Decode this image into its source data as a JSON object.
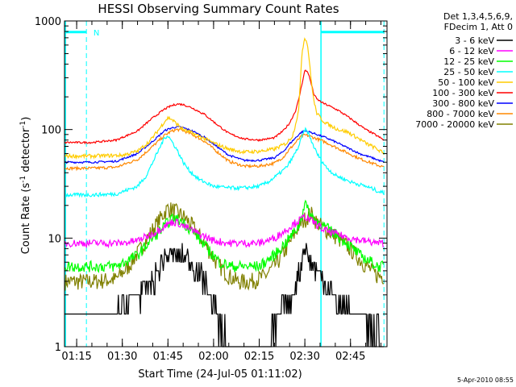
{
  "chart_data": {
    "type": "line",
    "title": "HESSI Observing Summary Count Rates",
    "xlabel": "Start Time (24-Jul-05 01:11:02)",
    "ylabel_main": "Count Rate (s",
    "ylabel_sup1": "-1",
    "ylabel_mid": " detector",
    "ylabel_sup2": "-1",
    "ylabel_end": ")",
    "yscale": "log",
    "ylim": [
      1,
      1000
    ],
    "xlim_minutes": [
      71.0,
      177.0
    ],
    "x_unit": "minutes after 00:00 UT",
    "yticks": [
      {
        "label": "1",
        "value": 1
      },
      {
        "label": "10",
        "value": 10
      },
      {
        "label": "100",
        "value": 100
      },
      {
        "label": "1000",
        "value": 1000
      }
    ],
    "xticks": [
      {
        "label": "01:15",
        "value": 75
      },
      {
        "label": "01:30",
        "value": 90
      },
      {
        "label": "01:45",
        "value": 105
      },
      {
        "label": "02:00",
        "value": 120
      },
      {
        "label": "02:15",
        "value": 135
      },
      {
        "label": "02:30",
        "value": 150
      },
      {
        "label": "02:45",
        "value": 165
      }
    ],
    "legend_header": [
      "Det 1,3,4,5,6,9,",
      "FDecim 1, Att 0"
    ],
    "legend_position": "top-right, outside plot",
    "series": [
      {
        "name": "3 - 6 keV",
        "color": "#000000",
        "x": [
          71,
          80,
          88,
          95,
          100,
          103,
          105,
          108,
          110,
          113,
          117,
          121,
          125,
          130,
          135,
          138,
          142,
          146,
          149,
          150,
          151,
          152,
          154,
          157,
          161,
          165,
          169,
          172,
          174,
          176
        ],
        "y": [
          2,
          2,
          2,
          3,
          4,
          6,
          7,
          7,
          7,
          6,
          4,
          2,
          1.2,
          1,
          1,
          1.2,
          2,
          3,
          6,
          9,
          7,
          6,
          5,
          4,
          2.5,
          2,
          2,
          1.5,
          1.5,
          1
        ]
      },
      {
        "name": "6 - 12 keV",
        "color": "#ff00ff",
        "x": [
          71,
          80,
          90,
          95,
          100,
          104,
          106,
          108,
          110,
          115,
          120,
          125,
          130,
          135,
          140,
          144,
          147,
          149,
          150,
          151,
          153,
          156,
          160,
          165,
          169,
          172,
          174,
          176
        ],
        "y": [
          9,
          9,
          9,
          9.5,
          11,
          13,
          14,
          14,
          13,
          11,
          9.5,
          9,
          9,
          9,
          10,
          12,
          14,
          15,
          16,
          15,
          14,
          12,
          11,
          10,
          9.5,
          9.2,
          9,
          9
        ]
      },
      {
        "name": "12 - 25 keV",
        "color": "#00ff00",
        "x": [
          71,
          80,
          88,
          95,
          100,
          104,
          106,
          108,
          110,
          114,
          118,
          122,
          126,
          130,
          135,
          140,
          145,
          148,
          149,
          150,
          151,
          153,
          156,
          160,
          164,
          168,
          172,
          174,
          176
        ],
        "y": [
          5.5,
          5.5,
          5.5,
          7,
          10,
          13,
          15,
          15,
          14,
          11,
          8,
          6,
          5.5,
          5.5,
          5.5,
          7,
          10,
          13,
          16,
          22,
          18,
          15,
          13,
          11,
          9,
          7,
          6,
          5.5,
          5.5
        ]
      },
      {
        "name": "25 - 50 keV",
        "color": "#00ffff",
        "x": [
          71,
          80,
          88,
          95,
          98,
          100,
          102,
          103,
          104,
          105,
          106,
          108,
          110,
          112,
          115,
          120,
          125,
          130,
          135,
          138,
          141,
          144,
          146,
          148,
          149,
          150,
          151,
          152,
          154,
          157,
          160,
          165,
          170,
          173,
          174,
          176
        ],
        "y": [
          25,
          25,
          25.5,
          30,
          38,
          50,
          65,
          75,
          85,
          88,
          80,
          65,
          50,
          42,
          35,
          30,
          29,
          29,
          30,
          33,
          38,
          45,
          55,
          70,
          85,
          100,
          95,
          80,
          60,
          45,
          38,
          33,
          30,
          28,
          27,
          26
        ]
      },
      {
        "name": "50 - 100 keV",
        "color": "#ffcc00",
        "x": [
          71,
          80,
          90,
          95,
          99,
          102,
          104,
          105,
          106,
          108,
          110,
          112,
          115,
          120,
          125,
          130,
          135,
          140,
          144,
          146,
          148,
          149,
          150,
          151,
          152,
          153,
          154,
          156,
          158,
          161,
          164,
          167,
          170,
          173,
          176
        ],
        "y": [
          57,
          57,
          58,
          63,
          78,
          100,
          120,
          128,
          126,
          112,
          100,
          95,
          88,
          75,
          66,
          62,
          63,
          66,
          75,
          88,
          150,
          500,
          720,
          580,
          300,
          180,
          140,
          120,
          110,
          100,
          95,
          85,
          75,
          68,
          60
        ]
      },
      {
        "name": "100 - 300 keV",
        "color": "#ff0000",
        "x": [
          71,
          80,
          88,
          95,
          100,
          104,
          106,
          108,
          110,
          113,
          117,
          121,
          125,
          130,
          135,
          140,
          143,
          145,
          147,
          148,
          149,
          150,
          151,
          152,
          153,
          154,
          156,
          158,
          161,
          164,
          167,
          170,
          173,
          176
        ],
        "y": [
          76,
          76,
          80,
          97,
          128,
          155,
          165,
          172,
          170,
          158,
          138,
          112,
          92,
          82,
          80,
          84,
          98,
          115,
          150,
          190,
          260,
          350,
          340,
          270,
          210,
          190,
          175,
          165,
          150,
          132,
          115,
          100,
          90,
          80
        ]
      },
      {
        "name": "300 - 800 keV",
        "color": "#0000ff",
        "x": [
          71,
          80,
          88,
          95,
          100,
          104,
          106,
          108,
          110,
          113,
          117,
          121,
          125,
          130,
          135,
          140,
          143,
          145,
          147,
          148,
          149,
          150,
          151,
          152,
          154,
          157,
          160,
          164,
          168,
          172,
          176
        ],
        "y": [
          50,
          50,
          51,
          60,
          78,
          98,
          103,
          106,
          104,
          97,
          85,
          70,
          58,
          52,
          52,
          55,
          63,
          74,
          84,
          90,
          95,
          97,
          96,
          94,
          90,
          84,
          77,
          68,
          60,
          55,
          50
        ]
      },
      {
        "name": "800 - 7000 keV",
        "color": "#ff8800",
        "x": [
          71,
          80,
          88,
          95,
          100,
          104,
          106,
          108,
          110,
          113,
          117,
          121,
          125,
          130,
          135,
          140,
          143,
          145,
          147,
          148,
          149,
          150,
          151,
          152,
          154,
          157,
          160,
          164,
          168,
          172,
          176
        ],
        "y": [
          44,
          44,
          45,
          53,
          70,
          89,
          96,
          100,
          98,
          90,
          78,
          63,
          51,
          46,
          46,
          49,
          56,
          66,
          76,
          82,
          87,
          89,
          88,
          86,
          82,
          76,
          69,
          61,
          54,
          49,
          45
        ]
      },
      {
        "name": "7000 - 20000 keV",
        "color": "#808000",
        "x": [
          71,
          80,
          88,
          92,
          96,
          100,
          103,
          105,
          107,
          110,
          113,
          117,
          121,
          125,
          128,
          132,
          137,
          141,
          145,
          148,
          150,
          151,
          152,
          154,
          157,
          161,
          165,
          169,
          172,
          174,
          176
        ],
        "y": [
          4,
          4,
          4.2,
          5.5,
          8,
          12,
          16,
          19,
          18,
          16,
          13,
          9,
          6,
          4.5,
          4,
          4,
          4.5,
          6,
          9,
          13,
          15,
          16,
          17,
          14,
          12,
          10,
          8,
          6,
          5,
          4.5,
          4.5
        ]
      }
    ],
    "annotations": [
      {
        "text": "N",
        "color": "#00ffff"
      }
    ],
    "attenuator_bar_color": "#00ffff",
    "timestamp": "5-Apr-2010 08:55"
  }
}
